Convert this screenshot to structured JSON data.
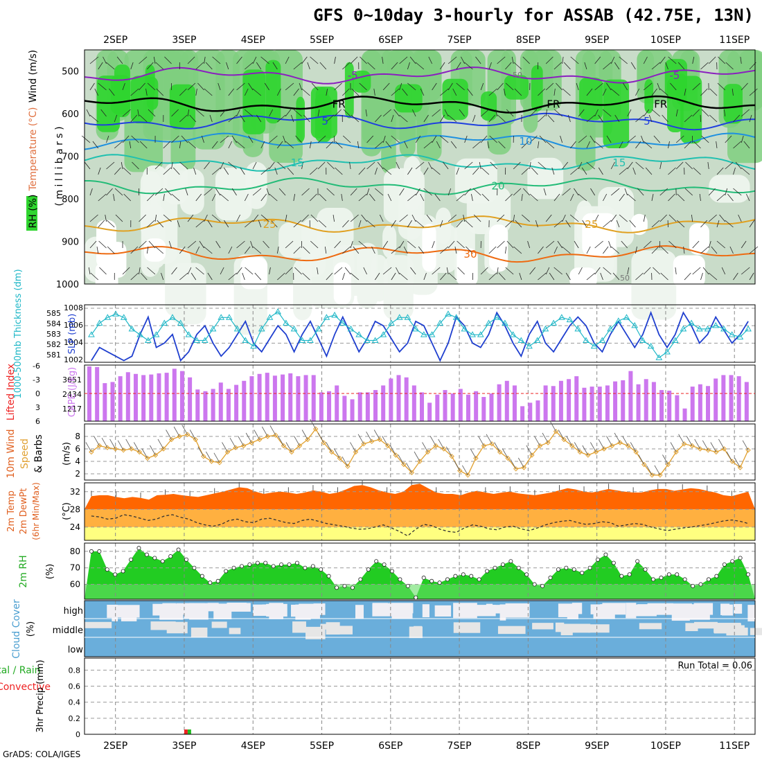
{
  "title": "GFS 0~10day 3-hourly for ASSAB (42.75E, 13N)",
  "credit": "GrADS: COLA/IGES",
  "dates": [
    "2SEP",
    "3SEP",
    "4SEP",
    "5SEP",
    "6SEP",
    "7SEP",
    "8SEP",
    "9SEP",
    "10SEP",
    "11SEP"
  ],
  "colors": {
    "rh_green": "#2fd52f",
    "rh_mid": "#7fcf7f",
    "rh_light": "#c9dcc9",
    "rh_pale": "#eef4ee",
    "cape_bar": "#cc77ee",
    "slp_line": "#1f3fcf",
    "thick_line": "#1fb7c7",
    "wind_speed": "#e0a030",
    "temp_fill": "#ff6600",
    "temp_max": "#dd2200",
    "dew_fill": "#ffb040",
    "dew_low": "#ffff80",
    "rh_fill": "#22cc22",
    "cloud": "#6aaedb",
    "cloud_clear": "#f0eff4",
    "precip_rain": "#22bb22",
    "precip_conv": "#ee2222"
  },
  "chart_data": [
    {
      "panel": "upper_air",
      "type": "heatmap",
      "ylabel_parts": [
        "RH (%)",
        "Temperature (°C)",
        "Wind (m/s)"
      ],
      "axis_label": "( m i l l i b a r s )",
      "yticks": [
        "500",
        "600",
        "700",
        "800",
        "900",
        "1000"
      ],
      "ylim": [
        450,
        1000
      ],
      "isotherms": [
        {
          "label": "-5",
          "color": "#8a1fbf",
          "level": 510
        },
        {
          "label": "FR",
          "color": "#000000",
          "level": 578
        },
        {
          "label": "5",
          "color": "#1f3fdf",
          "level": 618
        },
        {
          "label": "10",
          "color": "#1e90e0",
          "level": 665
        },
        {
          "label": "15",
          "color": "#1fc0b0",
          "level": 715
        },
        {
          "label": "20",
          "color": "#22bb77",
          "level": 770
        },
        {
          "label": "25",
          "color": "#e0a020",
          "level": 860
        },
        {
          "label": "30",
          "color": "#ee6a10",
          "level": 930
        }
      ],
      "rh_labels": [
        "50"
      ]
    },
    {
      "panel": "slp_thickness",
      "type": "line",
      "ylabel_left": "1000-500mb Thickness (dm)",
      "ylabel_right": "SLP (mb)",
      "yticks_left": [
        "585",
        "584",
        "583",
        "582",
        "581"
      ],
      "yticks_right": [
        "1008",
        "1006",
        "1004",
        "1002"
      ],
      "series": [
        {
          "name": "SLP (mb)",
          "values": [
            1002,
            1003.5,
            1003,
            1002.5,
            1002,
            1002.5,
            1005,
            1007,
            1003.5,
            1004,
            1005,
            1002,
            1003,
            1005,
            1006,
            1004,
            1002.5,
            1003.5,
            1005,
            1006.5,
            1004,
            1003,
            1004.5,
            1006,
            1005,
            1003,
            1005,
            1006.5,
            1004.5,
            1002.5,
            1005,
            1007,
            1005,
            1003,
            1004.5,
            1006.5,
            1006,
            1004.5,
            1003,
            1004,
            1006.5,
            1006,
            1004,
            1002,
            1004,
            1007,
            1006,
            1004,
            1003.5,
            1005,
            1007.5,
            1006,
            1004,
            1002.5,
            1005,
            1006.5,
            1004,
            1003,
            1004.5,
            1006,
            1007,
            1006,
            1004,
            1003,
            1005,
            1006.5,
            1005,
            1003.5,
            1005,
            1007.5,
            1005,
            1003.5,
            1005,
            1007.5,
            1006,
            1004,
            1005,
            1007,
            1005.5,
            1004,
            1005,
            1006.5
          ]
        },
        {
          "name": "1000-500mb Thickness (dm)",
          "values": [
            583,
            584,
            584.5,
            584.8,
            584.5,
            583.5,
            583,
            582.5,
            583,
            584,
            584.5,
            584,
            583,
            582.5,
            582.5,
            583.5,
            584.5,
            584.5,
            583.5,
            582.5,
            582,
            583.5,
            584.5,
            585,
            584,
            583.5,
            582.5,
            582.5,
            583.5,
            584.5,
            584.7,
            584,
            583.5,
            583,
            582.5,
            582.5,
            583,
            584,
            584.5,
            584.5,
            583.5,
            583,
            583,
            584,
            584.8,
            584.5,
            583.5,
            583,
            583,
            584,
            584.5,
            584,
            583,
            582.5,
            582,
            582.5,
            583.5,
            584,
            584.5,
            584.3,
            583.5,
            582.5,
            582,
            582.5,
            583.5,
            584.2,
            584.5,
            583.8,
            582.5,
            582,
            581,
            581.5,
            582.5,
            583.5,
            584,
            583.5,
            583.5,
            583.8,
            583.5,
            583,
            582.8,
            583.5
          ]
        }
      ]
    },
    {
      "panel": "cape_li",
      "type": "bar",
      "ylabel_left": "Lifted Index",
      "ylabel_right": "CAPE (J/kg)",
      "yticks_left": [
        "-6",
        "-3",
        "0",
        "3",
        "6"
      ],
      "yticks_right": [
        "3651",
        "2434",
        "1217"
      ],
      "ylim": [
        0,
        4868
      ],
      "values": [
        4750,
        4700,
        3300,
        3400,
        3900,
        4250,
        4100,
        4000,
        4050,
        4150,
        4200,
        4550,
        4350,
        3800,
        2750,
        2600,
        2800,
        3350,
        2800,
        3150,
        3500,
        3900,
        4100,
        4200,
        3950,
        4050,
        4150,
        3900,
        4000,
        4000,
        2500,
        2600,
        3100,
        2200,
        1900,
        2500,
        2500,
        2700,
        3100,
        3700,
        4000,
        3800,
        3100,
        2500,
        1600,
        2300,
        2700,
        2400,
        2800,
        2300,
        2600,
        2100,
        2400,
        3200,
        3500,
        3100,
        1300,
        1600,
        1800,
        3100,
        3050,
        3500,
        3650,
        3900,
        2900,
        3000,
        3000,
        3100,
        3450,
        3550,
        4350,
        3200,
        3650,
        3400,
        2700,
        2650,
        2250,
        1100,
        3000,
        3200,
        3050,
        3700,
        4000,
        4000,
        3900,
        3400
      ]
    },
    {
      "panel": "wind10m",
      "type": "line",
      "ylabel": "10m Wind Speed & Barbs (m/s)",
      "yticks": [
        "8",
        "6",
        "4",
        "2"
      ],
      "ylim": [
        1,
        10
      ],
      "series": [
        {
          "name": "Speed",
          "values": [
            5.5,
            6.5,
            6.2,
            6.0,
            5.8,
            6.0,
            5.5,
            4.5,
            5.0,
            6.0,
            7.5,
            8.0,
            8.3,
            7.5,
            4.8,
            4.0,
            3.8,
            5.5,
            6.2,
            6.5,
            7.0,
            7.5,
            8.0,
            8.2,
            6.5,
            5.5,
            6.5,
            7.5,
            9.2,
            7.0,
            5.5,
            4.5,
            3.2,
            5.5,
            6.8,
            7.2,
            7.5,
            6.5,
            5.0,
            3.5,
            2.2,
            4.0,
            5.5,
            6.5,
            6.0,
            4.8,
            2.5,
            1.8,
            4.5,
            6.5,
            6.8,
            5.5,
            4.5,
            2.8,
            3.0,
            5.0,
            6.5,
            7.0,
            8.8,
            7.5,
            6.5,
            5.5,
            5.0,
            5.5,
            6.0,
            6.5,
            7.0,
            6.5,
            5.5,
            3.5,
            1.8,
            1.8,
            3.5,
            5.5,
            6.8,
            6.5,
            6.0,
            5.8,
            5.5,
            6.0,
            4.0,
            3.0,
            5.8
          ]
        }
      ]
    },
    {
      "panel": "temp2m",
      "type": "area",
      "ylabel": "2m Temp 2m DewPt (6hr Min/Max) (°C)",
      "yticks": [
        "32",
        "28",
        "24"
      ],
      "ylim": [
        21,
        34
      ],
      "series": [
        {
          "name": "2m Temp",
          "values": [
            31,
            31.2,
            31.2,
            30.8,
            30.5,
            30.8,
            30.6,
            30.2,
            31.2,
            31.3,
            31.5,
            31.2,
            31.0,
            30.8,
            31.2,
            31.6,
            32.0,
            32.5,
            33.0,
            32.8,
            32.0,
            31.5,
            31.8,
            32.0,
            31.8,
            31.5,
            31.8,
            32.3,
            32.0,
            31.5,
            31.8,
            32.5,
            33.3,
            33.5,
            33.0,
            32.3,
            31.8,
            31.5,
            32.0,
            33.5,
            33.8,
            32.8,
            31.8,
            31.5,
            31.5,
            31.2,
            31.8,
            32.2,
            31.8,
            31.5,
            31.8,
            32.0,
            31.6,
            31.4,
            31.2,
            31.5,
            31.8,
            32.3,
            32.8,
            32.5,
            32.0,
            31.8,
            32.2,
            32.6,
            32.3,
            32.0,
            31.8,
            31.8,
            32.3,
            32.6,
            32.6,
            32.2,
            32.5,
            32.8,
            32.6,
            32.2,
            31.8,
            31.2,
            31.0,
            31.5,
            32.0
          ]
        },
        {
          "name": "2m DewPt",
          "values": [
            26.5,
            26.3,
            25.8,
            26.0,
            26.8,
            26.5,
            26.0,
            25.5,
            25.8,
            26.5,
            26.8,
            26.2,
            25.8,
            25.0,
            24.5,
            24.2,
            24.6,
            25.5,
            25.8,
            25.2,
            25.0,
            25.8,
            26.0,
            25.5,
            25.0,
            24.8,
            25.5,
            25.8,
            25.3,
            24.8,
            24.5,
            24.2,
            23.8,
            23.5,
            23.6,
            24.0,
            24.5,
            23.8,
            23.0,
            22.0,
            23.5,
            24.6,
            24.3,
            23.5,
            23.0,
            22.8,
            23.8,
            24.5,
            24.2,
            23.6,
            23.4,
            24.0,
            24.2,
            23.6,
            23.2,
            23.8,
            24.5,
            25.0,
            25.3,
            25.5,
            25.0,
            24.6,
            24.8,
            25.2,
            25.0,
            24.2,
            24.5,
            24.8,
            24.6,
            24.0,
            23.6,
            23.2,
            23.5,
            23.8,
            24.0,
            24.3,
            24.6,
            25.0,
            25.4,
            25.6,
            25.3,
            24.8
          ]
        }
      ]
    },
    {
      "panel": "rh2m",
      "type": "area",
      "ylabel": "2m RH (%)",
      "yticks": [
        "80",
        "70",
        "60"
      ],
      "ylim": [
        51,
        85
      ],
      "values": [
        80,
        80,
        69,
        66,
        68,
        75,
        82,
        78,
        76,
        74,
        77,
        81,
        75,
        70,
        65,
        61,
        62,
        68,
        70,
        71,
        72,
        73,
        73,
        71,
        72,
        72,
        73,
        70,
        71,
        69,
        65,
        58,
        59,
        58,
        63,
        69,
        74,
        72,
        68,
        63,
        59,
        52,
        64,
        62,
        61,
        63,
        65,
        66,
        65,
        63,
        68,
        70,
        72,
        74,
        70,
        66,
        60,
        59,
        64,
        69,
        70,
        69,
        67,
        70,
        75,
        78,
        73,
        65,
        66,
        74,
        69,
        63,
        64,
        66,
        66,
        63,
        59,
        60,
        63,
        65,
        72,
        74,
        76,
        66
      ]
    },
    {
      "panel": "cloud",
      "type": "heatmap",
      "ylabel": "Cloud Cover (%)",
      "levels": [
        "high",
        "middle",
        "low"
      ]
    },
    {
      "panel": "precip",
      "type": "bar",
      "ylabel_left": "Total / Rain Convective",
      "ylabel_right": "3hr Precip (mm)",
      "yticks": [
        "0.8",
        "0.6",
        "0.4",
        "0.2",
        "0"
      ],
      "ylim": [
        0,
        0.95
      ],
      "run_total": "Run Total = 0.06",
      "bars": [
        {
          "x_day": 2.05,
          "total": 0.06,
          "convective": 0.06
        }
      ]
    }
  ]
}
